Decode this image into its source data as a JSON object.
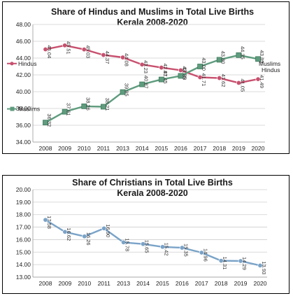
{
  "chart_data": [
    {
      "type": "line",
      "title": "Share of Hindus and Muslims in Total Live Births",
      "subtitle": "Kerala 2008-2020",
      "categories": [
        "2008",
        "2009",
        "2010",
        "2011",
        "2013",
        "2014",
        "2015",
        "2016",
        "2017",
        "2018",
        "2019",
        "2020"
      ],
      "ylim": [
        34,
        48
      ],
      "yticks": [
        "34.00",
        "36.00",
        "38.00",
        "40.00",
        "42.00",
        "44.00",
        "46.00",
        "48.00"
      ],
      "grid": true,
      "series": [
        {
          "name": "Hindus",
          "end_label": "Hindus",
          "color": "#c8506e",
          "values": [
            45.04,
            45.51,
            45.03,
            44.37,
            44.08,
            43.23,
            42.87,
            42.55,
            41.71,
            41.62,
            41.05,
            41.49
          ],
          "labels": [
            "45.04",
            "45.51",
            "45.03",
            "44.37",
            "44.08",
            "43.23",
            "42.87",
            "42.55",
            "41.71",
            "41.62",
            "41.05",
            "41.49"
          ]
        },
        {
          "name": "Muslims",
          "end_label": "Muslims",
          "color": "#5f9c7e",
          "values": [
            36.32,
            37.61,
            38.26,
            38.21,
            39.95,
            40.87,
            41.45,
            41.88,
            43.0,
            43.8,
            44.35,
            43.89
          ],
          "labels": [
            "36.32",
            "37.61",
            "38.26",
            "38.21",
            "39.95",
            "40.87",
            "41.45",
            "41.88",
            "43.00",
            "43.80",
            "44.35",
            "43.89"
          ]
        }
      ]
    },
    {
      "type": "line",
      "title": "Share of Christians in Total Live Births",
      "subtitle": "Kerala 2008-2020",
      "categories": [
        "2008",
        "2009",
        "2010",
        "2011",
        "2013",
        "2014",
        "2015",
        "2016",
        "2017",
        "2018",
        "2019",
        "2020"
      ],
      "ylim": [
        13,
        20
      ],
      "yticks": [
        "13.00",
        "14.00",
        "15.00",
        "16.00",
        "17.00",
        "18.00",
        "19.00",
        "20.00"
      ],
      "grid": true,
      "series": [
        {
          "name": "Christians",
          "color": "#7aa3c8",
          "values": [
            17.58,
            16.62,
            16.26,
            16.9,
            15.78,
            15.65,
            15.42,
            15.35,
            14.96,
            14.31,
            14.29,
            13.93
          ],
          "labels": [
            "17.58",
            "16.62",
            "16.26",
            "16.90",
            "15.78",
            "15.65",
            "15.42",
            "15.35",
            "14.96",
            "14.31",
            "14.29",
            "13.93"
          ]
        }
      ]
    }
  ]
}
